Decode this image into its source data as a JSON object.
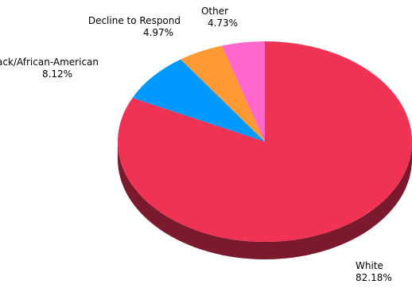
{
  "chart_data": {
    "type": "pie",
    "style": "3d",
    "title": "",
    "slices": [
      {
        "label": "White",
        "percent_label": "82.18%",
        "value": 82.18,
        "color": "#f03355",
        "shade": "#7b1a2c"
      },
      {
        "label": "Black/African-American",
        "percent_label": "8.12%",
        "value": 8.12,
        "color": "#0099ff",
        "shade": "#00508a"
      },
      {
        "label": "Decline to Respond",
        "percent_label": "4.97%",
        "value": 4.97,
        "color": "#ff9933",
        "shade": "#8a5219"
      },
      {
        "label": "Other",
        "percent_label": "4.73%",
        "value": 4.73,
        "color": "#ff66cc",
        "shade": "#8a366e"
      }
    ]
  }
}
